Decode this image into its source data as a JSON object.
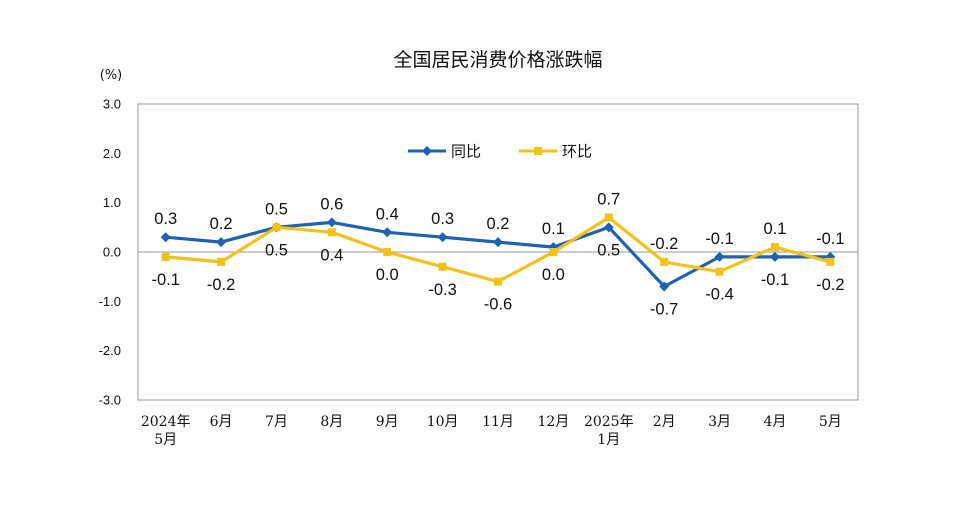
{
  "chart_data": {
    "type": "line",
    "title": "全国居民消费价格涨跌幅",
    "unit": "(%)",
    "ylim": [
      -3.0,
      3.0
    ],
    "yticks": [
      "3.0",
      "2.0",
      "1.0",
      "0.0",
      "-1.0",
      "-2.0",
      "-3.0"
    ],
    "categories": [
      [
        "2024年",
        "5月"
      ],
      [
        "6月"
      ],
      [
        "7月"
      ],
      [
        "8月"
      ],
      [
        "9月"
      ],
      [
        "10月"
      ],
      [
        "11月"
      ],
      [
        "12月"
      ],
      [
        "2025年",
        "1月"
      ],
      [
        "2月"
      ],
      [
        "3月"
      ],
      [
        "4月"
      ],
      [
        "5月"
      ]
    ],
    "series": [
      {
        "name": "同比",
        "color": "#1f63b0",
        "marker": "diamond",
        "values": [
          0.3,
          0.2,
          0.5,
          0.6,
          0.4,
          0.3,
          0.2,
          0.1,
          0.5,
          -0.7,
          -0.1,
          -0.1,
          -0.1
        ],
        "labels": [
          "0.3",
          "0.2",
          "0.5",
          "0.6",
          "0.4",
          "0.3",
          "0.2",
          "0.1",
          "0.5",
          "-0.7",
          "-0.1",
          "-0.1",
          "-0.1"
        ]
      },
      {
        "name": "环比",
        "color": "#f2c21a",
        "marker": "square",
        "values": [
          -0.1,
          -0.2,
          0.5,
          0.4,
          0.0,
          -0.3,
          -0.6,
          0.0,
          0.7,
          -0.2,
          -0.4,
          0.1,
          -0.2
        ],
        "labels": [
          "-0.1",
          "-0.2",
          "0.5",
          "0.4",
          "0.0",
          "-0.3",
          "-0.6",
          "0.0",
          "0.7",
          "-0.2",
          "-0.4",
          "0.1",
          "-0.2"
        ]
      }
    ],
    "legend": "top-center",
    "grid": false
  }
}
